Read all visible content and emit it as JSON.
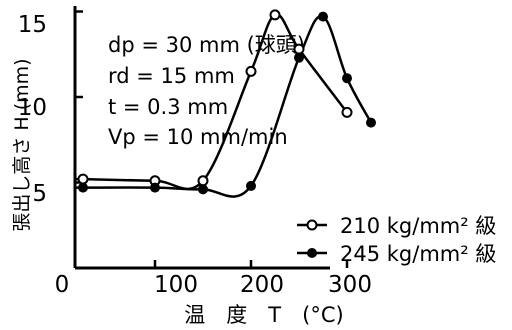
{
  "chart_data": {
    "type": "line",
    "xlabel": "温　度　T　(°C)",
    "ylabel": "張出し高さ H (mm)",
    "xlim": [
      0,
      330
    ],
    "ylim": [
      0,
      15.5
    ],
    "xticks": [
      "0",
      "100",
      "200",
      "300"
    ],
    "yticks": [
      "5",
      "10",
      "15"
    ],
    "x_tick_values": [
      0,
      100,
      200,
      300
    ],
    "y_tick_values": [
      5,
      10,
      15
    ],
    "grid": false,
    "legend_position": "bottom-right",
    "annotations": [
      "dp = 30 mm (球頭)",
      "rd = 15 mm",
      "t = 0.3 mm",
      "Vp = 10 mm/min"
    ],
    "series": [
      {
        "name": "210 kg/mm² 級",
        "marker": "open-circle",
        "x": [
          25,
          100,
          150,
          200,
          225,
          250,
          300
        ],
        "y": [
          5.2,
          5.1,
          5.1,
          11.5,
          14.8,
          12.8,
          9.1
        ]
      },
      {
        "name": "245 kg/mm² 級",
        "marker": "filled-circle",
        "x": [
          25,
          100,
          150,
          200,
          250,
          275,
          300,
          325
        ],
        "y": [
          4.7,
          4.7,
          4.6,
          4.8,
          12.3,
          14.7,
          11.1,
          8.5
        ]
      }
    ]
  }
}
